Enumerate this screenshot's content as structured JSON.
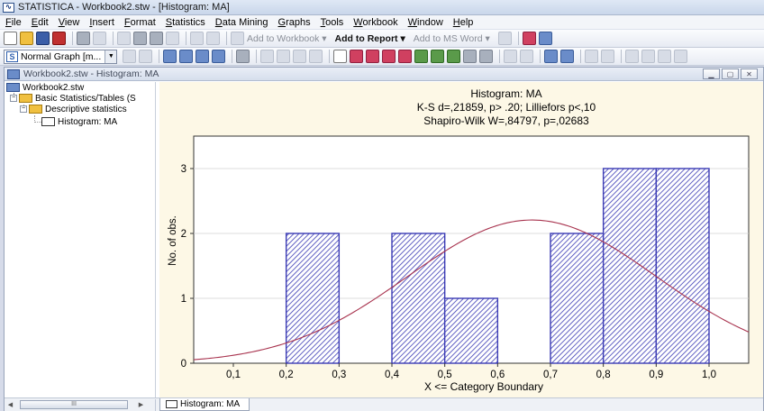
{
  "window": {
    "title": "STATISTICA - Workbook2.stw - [Histogram: MA]"
  },
  "menu": [
    "File",
    "Edit",
    "View",
    "Insert",
    "Format",
    "Statistics",
    "Data Mining",
    "Graphs",
    "Tools",
    "Workbook",
    "Window",
    "Help"
  ],
  "toolbar": {
    "add_to_workbook": "Add to Workbook ▾",
    "add_to_report": "Add to Report ▾",
    "add_to_msword": "Add to MS Word ▾",
    "graph_type_value": "Normal Graph [m...",
    "graph_type_badge": "S"
  },
  "document_window": {
    "title": "Workbook2.stw - Histogram: MA"
  },
  "tree": {
    "root": "Workbook2.stw",
    "items": [
      "Basic Statistics/Tables (S",
      "Descriptive statistics",
      "Histogram: MA"
    ]
  },
  "bottom": {
    "tab_label": "Histogram: MA",
    "scroll_grip": "III"
  },
  "colors": {
    "bar_fill": "#3a3ab4",
    "curve": "#a8334e",
    "plot_bg": "#ffffff",
    "panel_bg": "#fdf8e6"
  },
  "chart_data": {
    "type": "bar",
    "title": "Histogram: MA",
    "subtitle_lines": [
      "K-S d=,21859, p> .20; Lilliefors p<,10",
      "Shapiro-Wilk W=,84797, p=,02683"
    ],
    "xlabel": "X <= Category Boundary",
    "ylabel": "No. of obs.",
    "x_range": [
      0.025,
      1.075
    ],
    "ylim": [
      0,
      3.5
    ],
    "x_ticks": [
      0.1,
      0.2,
      0.3,
      0.4,
      0.5,
      0.6,
      0.7,
      0.8,
      0.9,
      1.0
    ],
    "x_tick_labels": [
      "0,1",
      "0,2",
      "0,3",
      "0,4",
      "0,5",
      "0,6",
      "0,7",
      "0,8",
      "0,9",
      "1,0"
    ],
    "y_ticks": [
      0,
      1,
      2,
      3
    ],
    "y_tick_labels": [
      "0",
      "1",
      "2",
      "3"
    ],
    "bins": [
      {
        "from": 0.2,
        "to": 0.3,
        "count": 2
      },
      {
        "from": 0.4,
        "to": 0.5,
        "count": 2
      },
      {
        "from": 0.5,
        "to": 0.6,
        "count": 1
      },
      {
        "from": 0.7,
        "to": 0.8,
        "count": 2
      },
      {
        "from": 0.8,
        "to": 0.9,
        "count": 3
      },
      {
        "from": 0.9,
        "to": 1.0,
        "count": 3
      }
    ],
    "normal_curve": {
      "mean": 0.665,
      "sd": 0.235,
      "n": 13,
      "bin_width": 0.1
    },
    "grid": true
  }
}
